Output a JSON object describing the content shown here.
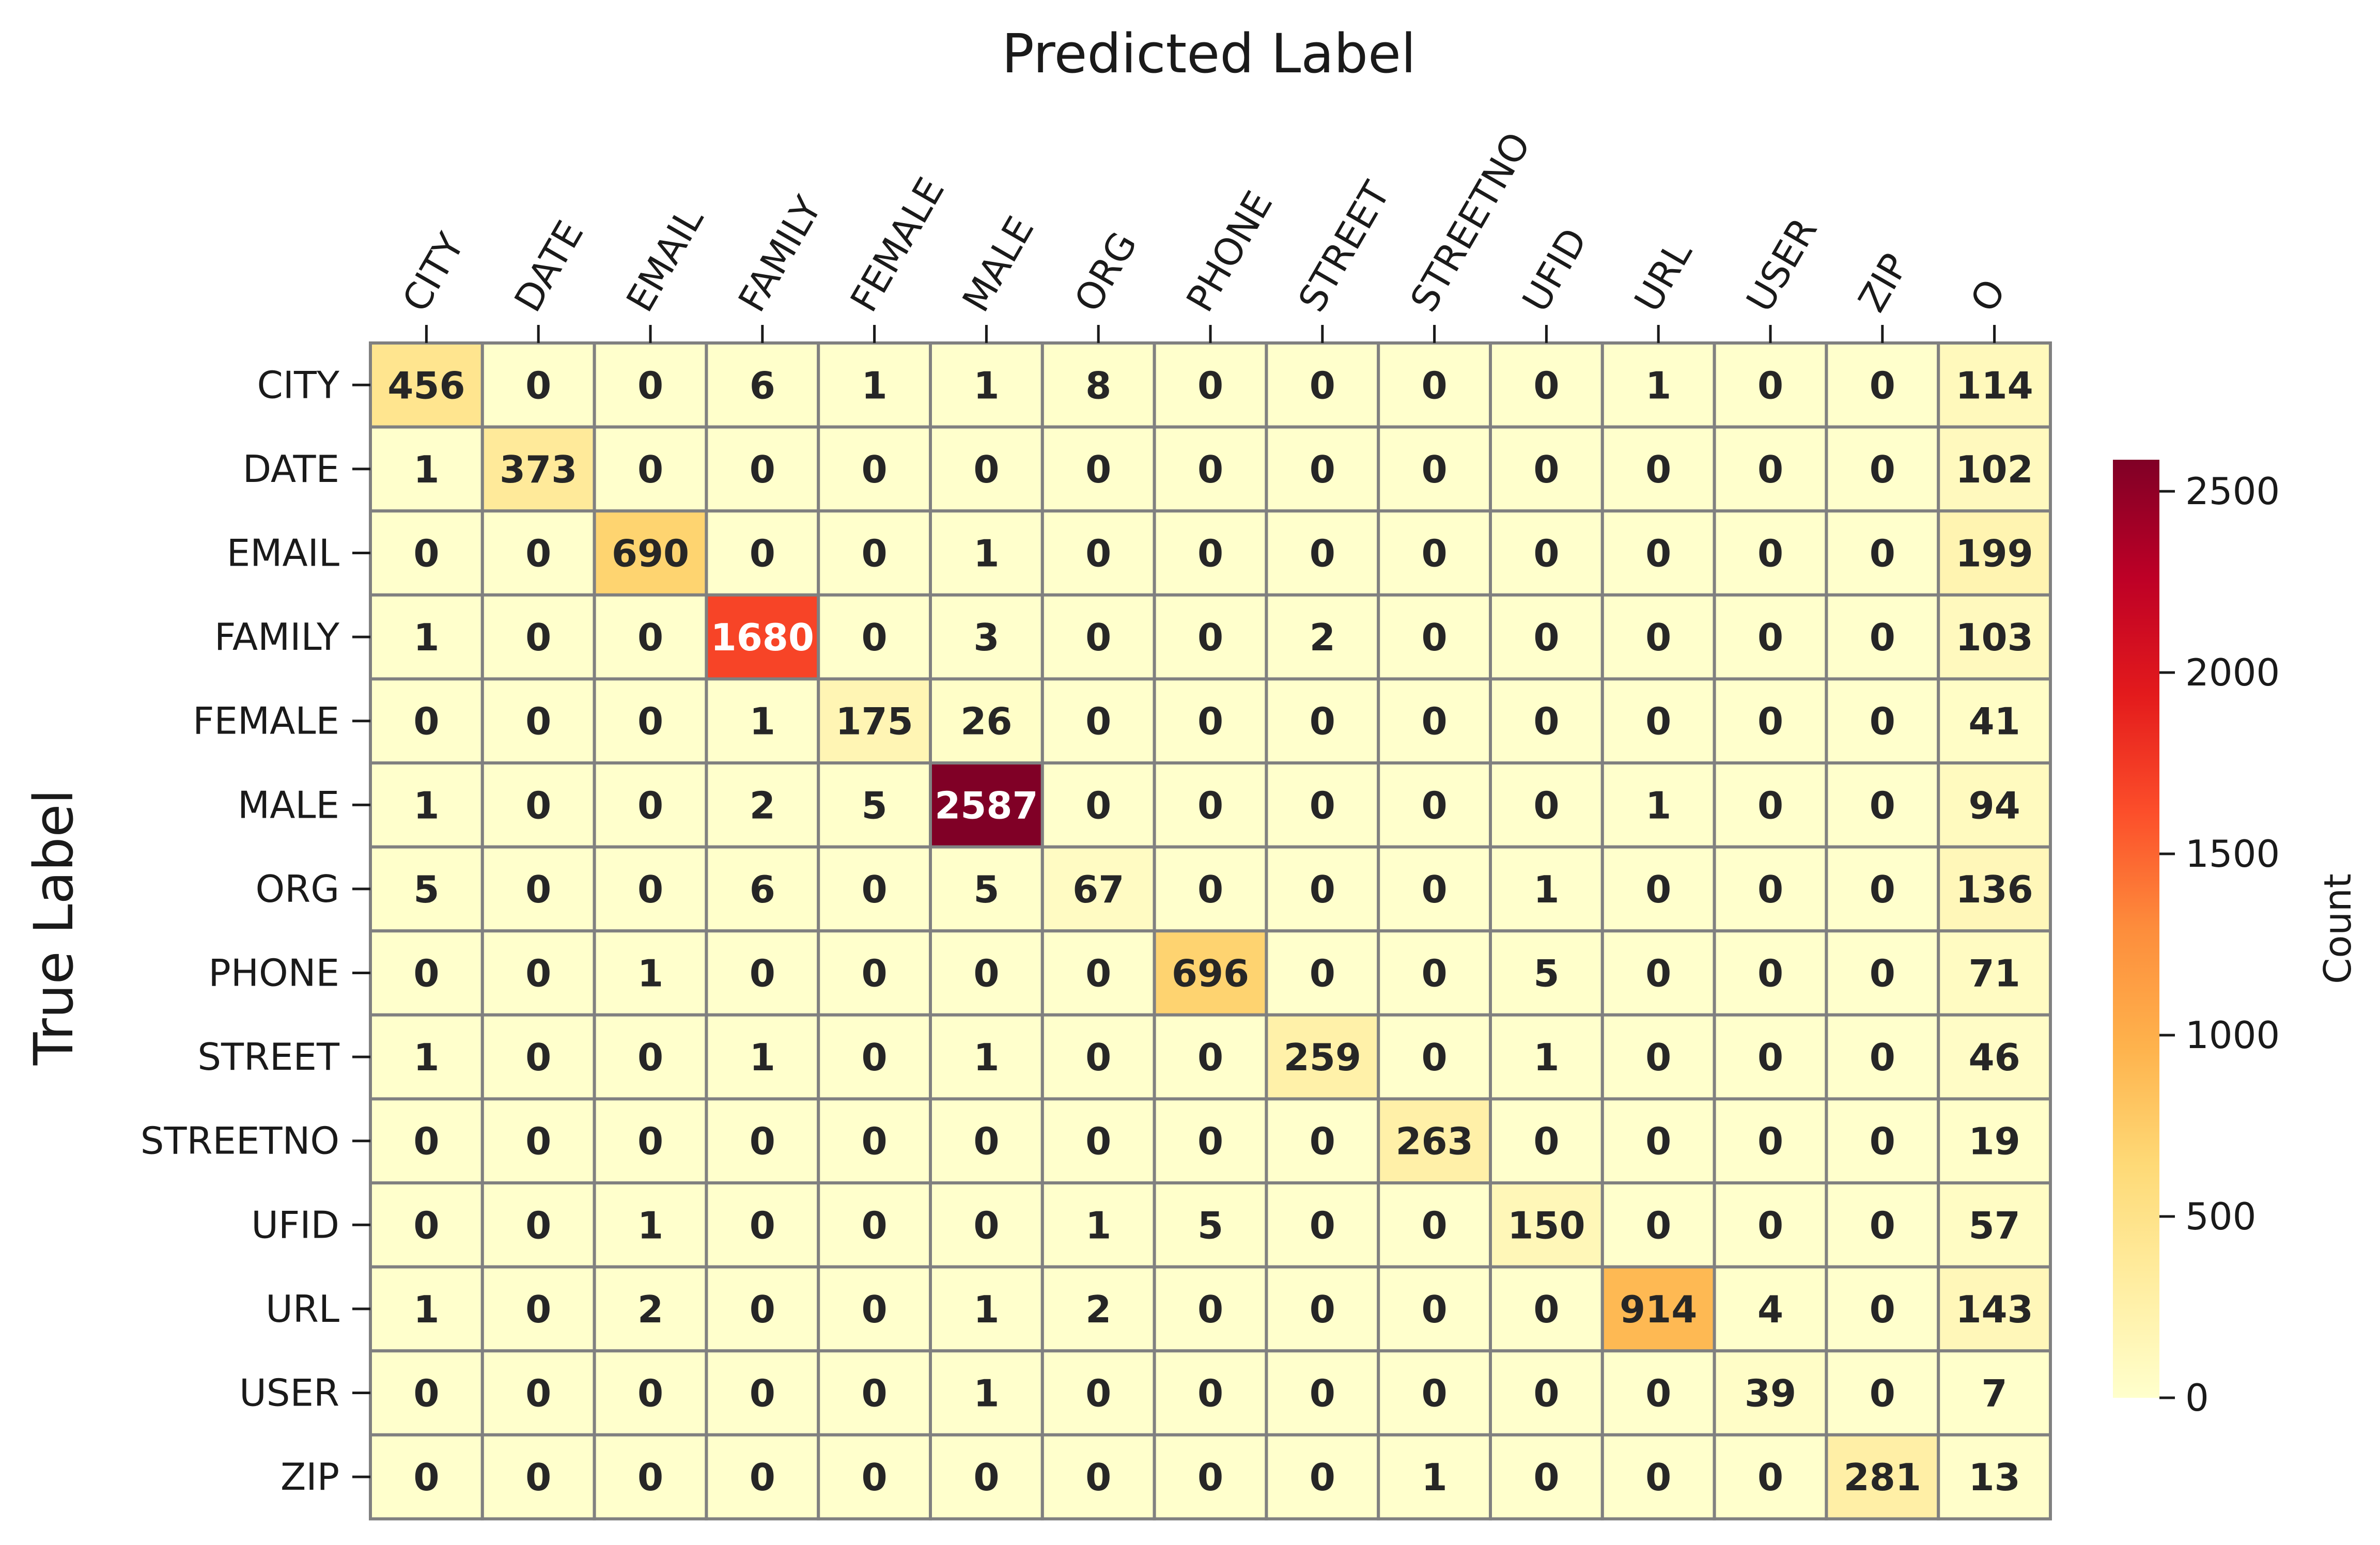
{
  "chart_data": {
    "type": "heatmap",
    "title": "Predicted Label",
    "xlabel": "Predicted Label",
    "ylabel": "True Label",
    "x_categories": [
      "CITY",
      "DATE",
      "EMAIL",
      "FAMILY",
      "FEMALE",
      "MALE",
      "ORG",
      "PHONE",
      "STREET",
      "STREETNO",
      "UFID",
      "URL",
      "USER",
      "ZIP",
      "O"
    ],
    "y_categories": [
      "CITY",
      "DATE",
      "EMAIL",
      "FAMILY",
      "FEMALE",
      "MALE",
      "ORG",
      "PHONE",
      "STREET",
      "STREETNO",
      "UFID",
      "URL",
      "USER",
      "ZIP"
    ],
    "values": [
      [
        456,
        0,
        0,
        6,
        1,
        1,
        8,
        0,
        0,
        0,
        0,
        1,
        0,
        0,
        114
      ],
      [
        1,
        373,
        0,
        0,
        0,
        0,
        0,
        0,
        0,
        0,
        0,
        0,
        0,
        0,
        102
      ],
      [
        0,
        0,
        690,
        0,
        0,
        1,
        0,
        0,
        0,
        0,
        0,
        0,
        0,
        0,
        199
      ],
      [
        1,
        0,
        0,
        1680,
        0,
        3,
        0,
        0,
        2,
        0,
        0,
        0,
        0,
        0,
        103
      ],
      [
        0,
        0,
        0,
        1,
        175,
        26,
        0,
        0,
        0,
        0,
        0,
        0,
        0,
        0,
        41
      ],
      [
        1,
        0,
        0,
        2,
        5,
        2587,
        0,
        0,
        0,
        0,
        0,
        1,
        0,
        0,
        94
      ],
      [
        5,
        0,
        0,
        6,
        0,
        5,
        67,
        0,
        0,
        0,
        1,
        0,
        0,
        0,
        136
      ],
      [
        0,
        0,
        1,
        0,
        0,
        0,
        0,
        696,
        0,
        0,
        5,
        0,
        0,
        0,
        71
      ],
      [
        1,
        0,
        0,
        1,
        0,
        1,
        0,
        0,
        259,
        0,
        1,
        0,
        0,
        0,
        46
      ],
      [
        0,
        0,
        0,
        0,
        0,
        0,
        0,
        0,
        0,
        263,
        0,
        0,
        0,
        0,
        19
      ],
      [
        0,
        0,
        1,
        0,
        0,
        0,
        1,
        5,
        0,
        0,
        150,
        0,
        0,
        0,
        57
      ],
      [
        1,
        0,
        2,
        0,
        0,
        1,
        2,
        0,
        0,
        0,
        0,
        914,
        4,
        0,
        143
      ],
      [
        0,
        0,
        0,
        0,
        0,
        1,
        0,
        0,
        0,
        0,
        0,
        0,
        39,
        0,
        7
      ],
      [
        0,
        0,
        0,
        0,
        0,
        0,
        0,
        0,
        0,
        1,
        0,
        0,
        0,
        281,
        13
      ]
    ],
    "colormap": "YlOrRd",
    "vmin": 0,
    "vmax": 2587,
    "colorbar": {
      "label": "Count",
      "ticks": [
        0,
        500,
        1000,
        1500,
        2000,
        2500
      ],
      "placement": "right"
    },
    "cell_border_color": "#808080",
    "annotation_color_dark": "#262626",
    "annotation_color_light": "#ffffff"
  }
}
